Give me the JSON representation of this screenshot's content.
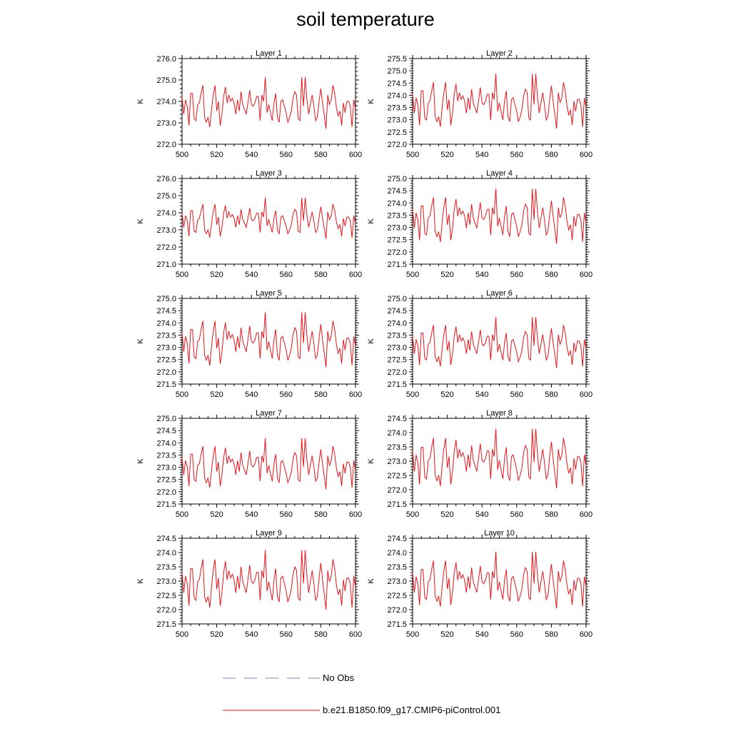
{
  "title": "soil temperature",
  "chart_data": {
    "type": "line",
    "title": "soil temperature",
    "xlabel": "",
    "ylabel": "K",
    "xlim": [
      500,
      600
    ],
    "xticks": [
      500,
      520,
      540,
      560,
      580,
      600
    ],
    "series_colors": {
      "model": "#e8141a",
      "obs": "#8080c8"
    },
    "legend": [
      {
        "label": "No Obs",
        "style": "dashed",
        "color": "#8080c8"
      },
      {
        "label": "b.e21.B1850.f09_g17.CMIP6-piControl.001",
        "style": "solid",
        "color": "#e8141a"
      }
    ],
    "panels": [
      {
        "title": "Layer 1",
        "ylabel": "K",
        "ylim": [
          272.0,
          276.0
        ],
        "yticks": [
          "272.0",
          "273.0",
          "274.0",
          "275.0",
          "276.0"
        ],
        "base": 273.7,
        "amp": 0.75
      },
      {
        "title": "Layer 2",
        "ylabel": "K",
        "ylim": [
          272.0,
          275.5
        ],
        "yticks": [
          "272.0",
          "272.5",
          "273.0",
          "273.5",
          "274.0",
          "274.5",
          "275.0",
          "275.5"
        ],
        "base": 273.55,
        "amp": 0.7
      },
      {
        "title": "Layer 3",
        "ylabel": "K",
        "ylim": [
          271.0,
          276.0
        ],
        "yticks": [
          "271.0",
          "272.0",
          "273.0",
          "274.0",
          "275.0",
          "276.0"
        ],
        "base": 273.45,
        "amp": 0.75
      },
      {
        "title": "Layer 4",
        "ylabel": "K",
        "ylim": [
          271.5,
          275.0
        ],
        "yticks": [
          "271.5",
          "272.0",
          "272.5",
          "273.0",
          "273.5",
          "274.0",
          "274.5",
          "275.0"
        ],
        "base": 273.25,
        "amp": 0.7
      },
      {
        "title": "Layer 5",
        "ylabel": "K",
        "ylim": [
          271.5,
          275.0
        ],
        "yticks": [
          "271.5",
          "272.0",
          "272.5",
          "273.0",
          "273.5",
          "274.0",
          "274.5",
          "275.0"
        ],
        "base": 273.1,
        "amp": 0.7
      },
      {
        "title": "Layer 6",
        "ylabel": "K",
        "ylim": [
          271.5,
          275.0
        ],
        "yticks": [
          "271.5",
          "272.0",
          "272.5",
          "273.0",
          "273.5",
          "274.0",
          "274.5",
          "275.0"
        ],
        "base": 273.0,
        "amp": 0.65
      },
      {
        "title": "Layer 7",
        "ylabel": "K",
        "ylim": [
          271.5,
          275.0
        ],
        "yticks": [
          "271.5",
          "272.0",
          "272.5",
          "273.0",
          "273.5",
          "274.0",
          "274.5",
          "275.0"
        ],
        "base": 272.95,
        "amp": 0.65
      },
      {
        "title": "Layer 8",
        "ylabel": "K",
        "ylim": [
          271.5,
          274.5
        ],
        "yticks": [
          "271.5",
          "272.0",
          "272.5",
          "273.0",
          "273.5",
          "274.0",
          "274.5"
        ],
        "base": 272.9,
        "amp": 0.65
      },
      {
        "title": "Layer 9",
        "ylabel": "K",
        "ylim": [
          271.5,
          274.5
        ],
        "yticks": [
          "271.5",
          "272.0",
          "272.5",
          "273.0",
          "273.5",
          "274.0",
          "274.5"
        ],
        "base": 272.85,
        "amp": 0.65
      },
      {
        "title": "Layer 10",
        "ylabel": "K",
        "ylim": [
          271.5,
          274.5
        ],
        "yticks": [
          "271.5",
          "272.0",
          "272.5",
          "273.0",
          "273.5",
          "274.0",
          "274.5"
        ],
        "base": 272.85,
        "amp": 0.62
      }
    ],
    "x": [
      500,
      501,
      502,
      503,
      504,
      505,
      506,
      507,
      508,
      509,
      510,
      511,
      512,
      513,
      514,
      515,
      516,
      517,
      518,
      519,
      520,
      521,
      522,
      523,
      524,
      525,
      526,
      527,
      528,
      529,
      530,
      531,
      532,
      533,
      534,
      535,
      536,
      537,
      538,
      539,
      540,
      541,
      542,
      543,
      544,
      545,
      546,
      547,
      548,
      549,
      550,
      551,
      552,
      553,
      554,
      555,
      556,
      557,
      558,
      559,
      560,
      561,
      562,
      563,
      564,
      565,
      566,
      567,
      568,
      569,
      570,
      571,
      572,
      573,
      574,
      575,
      576,
      577,
      578,
      579,
      580,
      581,
      582,
      583,
      584,
      585,
      586,
      587,
      588,
      589,
      590,
      591,
      592,
      593,
      594,
      595,
      596,
      597,
      598,
      599,
      600
    ],
    "shape": [
      0.7,
      -0.4,
      0.5,
      0.1,
      -1.1,
      0.9,
      0.9,
      -0.7,
      -0.8,
      0.2,
      0.3,
      0.9,
      1.4,
      -0.6,
      -0.9,
      -0.6,
      -1.2,
      -0.1,
      0.8,
      1.4,
      -0.2,
      0.4,
      -1.1,
      -0.4,
      0.7,
      1.3,
      0.3,
      0.8,
      0.4,
      0.6,
      0.3,
      -0.4,
      0.5,
      -0.2,
      1.0,
      0.2,
      -0.1,
      -0.4,
      0.3,
      1.1,
      0.2,
      0.1,
      0.3,
      0.7,
      0.7,
      -0.8,
      0.8,
      0.4,
      1.9,
      -0.3,
      0.2,
      -0.3,
      -0.8,
      0.3,
      0.9,
      -0.6,
      -0.9,
      0.4,
      0.5,
      0.1,
      -0.3,
      -0.9,
      -0.6,
      -0.2,
      0.6,
      1.0,
      0.8,
      -0.7,
      -0.8,
      1.9,
      0.1,
      1.9,
      0.5,
      -0.4,
      0.2,
      0.8,
      0.1,
      -0.8,
      -0.6,
      0.4,
      1.2,
      0.3,
      -0.5,
      -1.3,
      0.8,
      0.2,
      0.5,
      1.4,
      0.9,
      0.0,
      -0.5,
      -0.2,
      -1.1,
      0.3,
      -0.3,
      0.4,
      0.4,
      0.1,
      -1.2,
      0.5,
      -0.1
    ]
  }
}
